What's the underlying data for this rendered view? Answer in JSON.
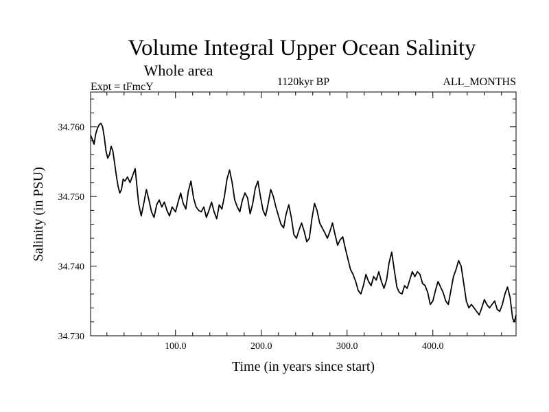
{
  "chart_data": {
    "type": "line",
    "title": "Volume Integral Upper Ocean Salinity",
    "subtitle": "Whole area",
    "experiment": "Expt = tFmcY",
    "period": "1120kyr BP",
    "months": "ALL_MONTHS",
    "xlabel": "Time (in years since start)",
    "ylabel": "Salinity (in PSU)",
    "xlim": [
      1,
      497
    ],
    "ylim": [
      34.73,
      34.765
    ],
    "x_ticks": [
      100,
      200,
      300,
      400
    ],
    "x_tick_labels": [
      "100.0",
      "200.0",
      "300.0",
      "400.0"
    ],
    "y_ticks": [
      34.73,
      34.74,
      34.75,
      34.76
    ],
    "y_tick_labels": [
      "34.730",
      "34.740",
      "34.750",
      "34.760"
    ],
    "series": [
      {
        "name": "Salinity",
        "points": [
          [
            1,
            34.7588
          ],
          [
            3,
            34.7582
          ],
          [
            5,
            34.7575
          ],
          [
            7,
            34.759
          ],
          [
            9,
            34.7598
          ],
          [
            11,
            34.7603
          ],
          [
            13,
            34.7605
          ],
          [
            15,
            34.76
          ],
          [
            17,
            34.7585
          ],
          [
            19,
            34.7565
          ],
          [
            21,
            34.7555
          ],
          [
            23,
            34.756
          ],
          [
            25,
            34.7572
          ],
          [
            27,
            34.7565
          ],
          [
            29,
            34.7548
          ],
          [
            31,
            34.753
          ],
          [
            33,
            34.7515
          ],
          [
            35,
            34.7505
          ],
          [
            37,
            34.751
          ],
          [
            39,
            34.7525
          ],
          [
            41,
            34.7522
          ],
          [
            44,
            34.7528
          ],
          [
            47,
            34.752
          ],
          [
            50,
            34.753
          ],
          [
            53,
            34.754
          ],
          [
            55,
            34.7515
          ],
          [
            57,
            34.749
          ],
          [
            60,
            34.7472
          ],
          [
            63,
            34.749
          ],
          [
            66,
            34.751
          ],
          [
            69,
            34.7495
          ],
          [
            72,
            34.7478
          ],
          [
            75,
            34.747
          ],
          [
            78,
            34.7488
          ],
          [
            81,
            34.7495
          ],
          [
            84,
            34.7485
          ],
          [
            87,
            34.7492
          ],
          [
            90,
            34.748
          ],
          [
            93,
            34.7472
          ],
          [
            96,
            34.7485
          ],
          [
            100,
            34.7478
          ],
          [
            103,
            34.7492
          ],
          [
            106,
            34.7505
          ],
          [
            109,
            34.749
          ],
          [
            112,
            34.7482
          ],
          [
            115,
            34.7508
          ],
          [
            118,
            34.7522
          ],
          [
            121,
            34.7498
          ],
          [
            124,
            34.7485
          ],
          [
            127,
            34.748
          ],
          [
            130,
            34.7478
          ],
          [
            133,
            34.7485
          ],
          [
            136,
            34.747
          ],
          [
            139,
            34.748
          ],
          [
            142,
            34.7492
          ],
          [
            145,
            34.7478
          ],
          [
            148,
            34.7468
          ],
          [
            151,
            34.7488
          ],
          [
            154,
            34.7482
          ],
          [
            157,
            34.75
          ],
          [
            160,
            34.7525
          ],
          [
            163,
            34.7538
          ],
          [
            166,
            34.752
          ],
          [
            169,
            34.7495
          ],
          [
            172,
            34.7485
          ],
          [
            175,
            34.7478
          ],
          [
            178,
            34.7495
          ],
          [
            181,
            34.7505
          ],
          [
            184,
            34.7498
          ],
          [
            187,
            34.7475
          ],
          [
            190,
            34.749
          ],
          [
            193,
            34.7512
          ],
          [
            196,
            34.7522
          ],
          [
            199,
            34.75
          ],
          [
            202,
            34.748
          ],
          [
            205,
            34.7472
          ],
          [
            208,
            34.749
          ],
          [
            211,
            34.751
          ],
          [
            214,
            34.75
          ],
          [
            217,
            34.7485
          ],
          [
            220,
            34.7472
          ],
          [
            223,
            34.746
          ],
          [
            226,
            34.7455
          ],
          [
            229,
            34.7475
          ],
          [
            232,
            34.7488
          ],
          [
            235,
            34.747
          ],
          [
            238,
            34.7445
          ],
          [
            241,
            34.744
          ],
          [
            244,
            34.7452
          ],
          [
            247,
            34.7462
          ],
          [
            250,
            34.745
          ],
          [
            253,
            34.7435
          ],
          [
            256,
            34.744
          ],
          [
            259,
            34.7468
          ],
          [
            262,
            34.749
          ],
          [
            265,
            34.748
          ],
          [
            268,
            34.7462
          ],
          [
            271,
            34.7455
          ],
          [
            274,
            34.7448
          ],
          [
            277,
            34.744
          ],
          [
            280,
            34.745
          ],
          [
            283,
            34.7462
          ],
          [
            286,
            34.7445
          ],
          [
            289,
            34.743
          ],
          [
            292,
            34.7438
          ],
          [
            295,
            34.7442
          ],
          [
            298,
            34.7425
          ],
          [
            301,
            34.741
          ],
          [
            304,
            34.7395
          ],
          [
            307,
            34.7388
          ],
          [
            310,
            34.7378
          ],
          [
            313,
            34.7365
          ],
          [
            316,
            34.736
          ],
          [
            319,
            34.7372
          ],
          [
            322,
            34.7388
          ],
          [
            325,
            34.7378
          ],
          [
            328,
            34.7372
          ],
          [
            331,
            34.7385
          ],
          [
            334,
            34.738
          ],
          [
            337,
            34.7392
          ],
          [
            340,
            34.7378
          ],
          [
            343,
            34.7368
          ],
          [
            346,
            34.738
          ],
          [
            349,
            34.7405
          ],
          [
            352,
            34.742
          ],
          [
            355,
            34.7395
          ],
          [
            358,
            34.737
          ],
          [
            361,
            34.7362
          ],
          [
            364,
            34.736
          ],
          [
            367,
            34.7372
          ],
          [
            370,
            34.7368
          ],
          [
            373,
            34.738
          ],
          [
            376,
            34.7392
          ],
          [
            379,
            34.7385
          ],
          [
            382,
            34.7392
          ],
          [
            385,
            34.7388
          ],
          [
            388,
            34.7375
          ],
          [
            391,
            34.7372
          ],
          [
            394,
            34.7362
          ],
          [
            397,
            34.7345
          ],
          [
            400,
            34.735
          ],
          [
            403,
            34.7365
          ],
          [
            406,
            34.7378
          ],
          [
            409,
            34.737
          ],
          [
            412,
            34.7362
          ],
          [
            415,
            34.735
          ],
          [
            418,
            34.7345
          ],
          [
            421,
            34.7365
          ],
          [
            424,
            34.7385
          ],
          [
            427,
            34.7395
          ],
          [
            430,
            34.7408
          ],
          [
            433,
            34.74
          ],
          [
            436,
            34.7375
          ],
          [
            439,
            34.735
          ],
          [
            442,
            34.734
          ],
          [
            445,
            34.7345
          ],
          [
            448,
            34.734
          ],
          [
            451,
            34.7335
          ],
          [
            454,
            34.733
          ],
          [
            457,
            34.734
          ],
          [
            460,
            34.7352
          ],
          [
            463,
            34.7345
          ],
          [
            466,
            34.734
          ],
          [
            469,
            34.7345
          ],
          [
            472,
            34.735
          ],
          [
            475,
            34.7338
          ],
          [
            478,
            34.7335
          ],
          [
            481,
            34.7345
          ],
          [
            484,
            34.736
          ],
          [
            487,
            34.737
          ],
          [
            490,
            34.7355
          ],
          [
            493,
            34.7325
          ],
          [
            495,
            34.732
          ],
          [
            497,
            34.733
          ]
        ]
      }
    ]
  }
}
